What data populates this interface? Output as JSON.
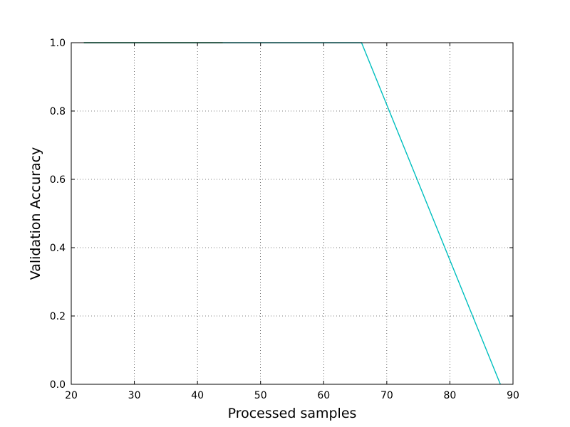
{
  "chart_data": {
    "type": "line",
    "title": "",
    "xlabel": "Processed samples",
    "ylabel": "Validation Accuracy",
    "xlim": [
      20,
      90
    ],
    "ylim": [
      0.0,
      1.0
    ],
    "xticks": [
      "20",
      "30",
      "40",
      "50",
      "60",
      "70",
      "80",
      "90"
    ],
    "yticks": [
      "0.0",
      "0.2",
      "0.4",
      "0.6",
      "0.8",
      "1.0"
    ],
    "grid": true,
    "series": [
      {
        "color": "#b8860b",
        "x": [
          22,
          44
        ],
        "y": [
          1.0,
          1.0
        ]
      },
      {
        "color": "#00bfbf",
        "x": [
          22,
          66,
          88
        ],
        "y": [
          1.0,
          1.0,
          0.0
        ]
      }
    ]
  }
}
